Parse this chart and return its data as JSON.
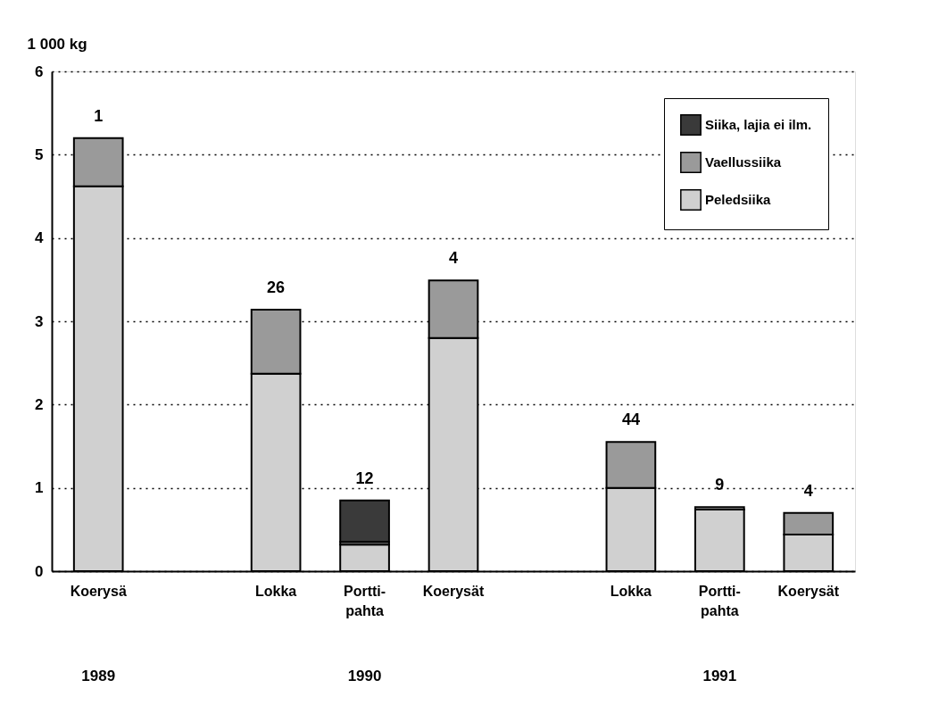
{
  "chart_data": {
    "type": "bar",
    "stacked": true,
    "ylabel": "1 000 kg",
    "categories": [
      "Koerysä",
      null,
      "Lokka",
      "Portti-\npahta",
      "Koerysät",
      null,
      "Lokka",
      "Portti-\npahta",
      "Koerysät"
    ],
    "series": [
      {
        "name": "Peledsiika",
        "color": "#d0d0d0",
        "values": [
          4.62,
          null,
          2.37,
          0.32,
          2.8,
          null,
          1.0,
          0.74,
          0.44
        ]
      },
      {
        "name": "Vaellussiika",
        "color": "#9a9a9a",
        "values": [
          0.58,
          null,
          0.77,
          0.03,
          0.69,
          null,
          0.55,
          0.03,
          0.26
        ]
      },
      {
        "name": "Siika, lajia ei ilm.",
        "color": "#3a3a3a",
        "values": [
          null,
          null,
          null,
          0.5,
          null,
          null,
          null,
          null,
          null
        ]
      }
    ],
    "annotations": [
      "1",
      "26",
      "12",
      "4",
      "44",
      "9",
      "4",
      "1989",
      "1990",
      "1991"
    ],
    "ylim": [
      0,
      6
    ],
    "yticks": [
      0,
      1,
      2,
      3,
      4,
      5,
      6
    ],
    "grid": "y",
    "legend": "top right"
  }
}
